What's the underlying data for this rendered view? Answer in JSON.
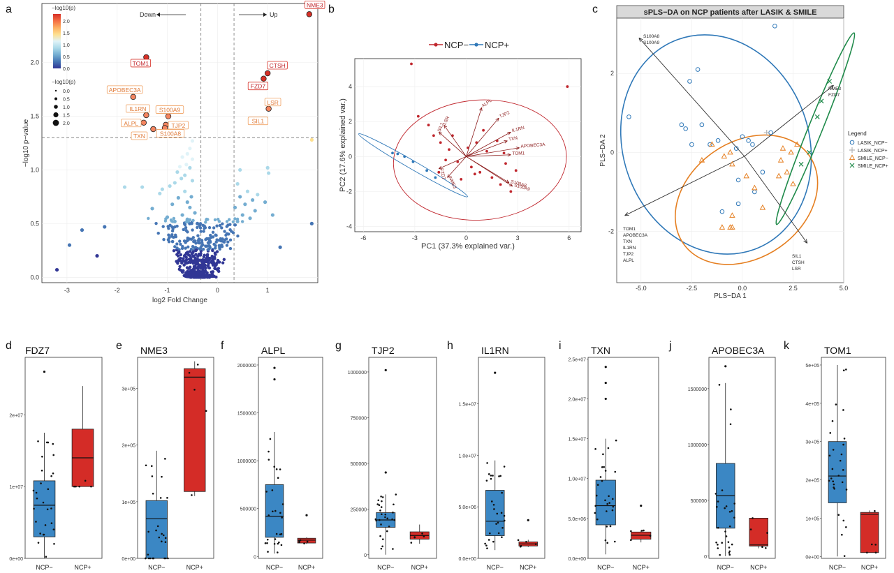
{
  "panel_letters": [
    "a",
    "b",
    "c",
    "d",
    "e",
    "f",
    "g",
    "h",
    "i",
    "j",
    "k"
  ],
  "chart_data": [
    {
      "id": "a",
      "type": "scatter",
      "title": "",
      "xlabel": "log2 Fold Change",
      "ylabel": "−log10 p−value",
      "xlim": [
        -3.5,
        2.0
      ],
      "ylim": [
        -0.05,
        2.55
      ],
      "xticks": [
        -3,
        -2,
        -1,
        0,
        1
      ],
      "yticks": [
        0.0,
        0.5,
        1.0,
        1.5,
        2.0
      ],
      "threshold_x": [
        -0.33,
        0.33
      ],
      "threshold_y": 1.3,
      "annotations": {
        "down": "Down",
        "up": "Up"
      },
      "colorbar": {
        "title": "−log10(p)",
        "ticks": [
          0.0,
          0.5,
          1.0,
          1.5,
          2.0
        ],
        "colors": [
          "#313695",
          "#4575b4",
          "#74add1",
          "#abd9e9",
          "#e0f3f8",
          "#fee090",
          "#fdae61",
          "#f46d43",
          "#d73027"
        ]
      },
      "size_legend": {
        "title": "−log10(p)",
        "values": [
          0.0,
          0.5,
          1.0,
          1.5,
          2.0
        ]
      },
      "labeled_genes": [
        {
          "gene": "NME3",
          "x": 1.83,
          "y": 2.45
        },
        {
          "gene": "TOM1",
          "x": -1.42,
          "y": 2.05
        },
        {
          "gene": "CTSH",
          "x": 1.0,
          "y": 1.9
        },
        {
          "gene": "FZD7",
          "x": 0.92,
          "y": 1.85
        },
        {
          "gene": "APOBEC3A",
          "x": -1.68,
          "y": 1.68
        },
        {
          "gene": "IL1RN",
          "x": -1.42,
          "y": 1.51
        },
        {
          "gene": "S100A9",
          "x": -0.98,
          "y": 1.5
        },
        {
          "gene": "LSR",
          "x": 1.02,
          "y": 1.57
        },
        {
          "gene": "SIL1",
          "x": 0.92,
          "y": 1.46
        },
        {
          "gene": "ALPL",
          "x": -1.47,
          "y": 1.44
        },
        {
          "gene": "TJP2",
          "x": -1.03,
          "y": 1.42
        },
        {
          "gene": "TXN",
          "x": -1.28,
          "y": 1.38
        },
        {
          "gene": "S100A8",
          "x": -1.05,
          "y": 1.39
        }
      ],
      "other_points": [
        [
          1.88,
          1.28
        ],
        [
          1.88,
          0.5
        ],
        [
          -0.5,
          1.27
        ],
        [
          -0.55,
          1.2
        ],
        [
          -0.6,
          1.15
        ],
        [
          -0.7,
          1.12
        ],
        [
          -0.5,
          1.1
        ],
        [
          -0.62,
          1.05
        ],
        [
          -0.75,
          1.03
        ],
        [
          -0.55,
          1.02
        ],
        [
          -0.8,
          0.98
        ],
        [
          -0.65,
          0.95
        ],
        [
          -0.72,
          0.92
        ],
        [
          -0.5,
          0.9
        ],
        [
          -0.85,
          0.88
        ],
        [
          -0.95,
          0.85
        ],
        [
          -1.1,
          0.82
        ],
        [
          -0.65,
          0.8
        ],
        [
          -1.15,
          0.78
        ],
        [
          -0.52,
          0.75
        ],
        [
          -0.78,
          0.74
        ],
        [
          -0.6,
          0.7
        ],
        [
          -0.9,
          0.68
        ],
        [
          -0.55,
          0.65
        ],
        [
          -1.3,
          0.64
        ],
        [
          -1.5,
          0.84
        ],
        [
          -1.85,
          0.84
        ],
        [
          -0.45,
          0.6
        ],
        [
          -0.7,
          0.58
        ],
        [
          -1.0,
          0.56
        ],
        [
          -0.6,
          0.54
        ],
        [
          -0.85,
          0.52
        ],
        [
          -0.4,
          0.5
        ],
        [
          -2.25,
          0.47
        ],
        [
          -2.7,
          0.44
        ],
        [
          -2.95,
          0.3
        ],
        [
          -2.4,
          0.2
        ],
        [
          -3.2,
          0.07
        ],
        [
          0.4,
          0.87
        ],
        [
          0.6,
          0.8
        ],
        [
          0.8,
          0.77
        ],
        [
          0.45,
          0.75
        ],
        [
          0.7,
          0.72
        ],
        [
          0.55,
          0.68
        ],
        [
          0.95,
          0.7
        ],
        [
          0.35,
          0.65
        ],
        [
          0.75,
          0.62
        ],
        [
          1.1,
          0.58
        ],
        [
          0.5,
          0.58
        ],
        [
          0.65,
          0.55
        ],
        [
          1.0,
          1.02
        ],
        [
          1.02,
          0.97
        ],
        [
          0.45,
          1.0
        ],
        [
          0.4,
          0.52
        ],
        [
          1.25,
          0.28
        ]
      ]
    },
    {
      "id": "b",
      "type": "scatter",
      "title": "",
      "xlabel": "PC1 (37.3% explained var.)",
      "ylabel": "PC2 (17.6% explained var.)",
      "xlim": [
        -6.5,
        6.7
      ],
      "ylim": [
        -4.3,
        5.6
      ],
      "xticks": [
        -6,
        -3,
        0,
        3,
        6
      ],
      "yticks": [
        -4,
        -2,
        0,
        2,
        4
      ],
      "legend": {
        "placement": "top",
        "entries": [
          "NCP−",
          "NCP+"
        ]
      },
      "series": [
        {
          "name": "NCP−",
          "color": "#c0262d",
          "x": [
            -3.2,
            5.9,
            -2.8,
            -1.9,
            -1.5,
            -1.0,
            -0.5,
            0.3,
            0.8,
            1.5,
            2.0,
            2.6,
            -2.2,
            -1.2,
            0.1,
            0.6,
            1.2,
            2.3,
            -0.8,
            0.5,
            1.8,
            2.9,
            2.2,
            -1.6,
            -0.3,
            1.0
          ],
          "y": [
            5.3,
            4.0,
            2.3,
            1.2,
            0.8,
            0.4,
            -0.3,
            -0.6,
            -0.9,
            -1.2,
            -1.6,
            -2.0,
            1.8,
            -0.2,
            0.5,
            0.8,
            0.3,
            -0.4,
            1.2,
            -1.0,
            0.9,
            -0.8,
            0.2,
            -0.9,
            -1.3,
            1.5
          ]
        },
        {
          "name": "NCP+",
          "color": "#2f78b8",
          "x": [
            -4.3,
            -4.0,
            -3.6,
            -3.1,
            -2.3,
            -1.8
          ],
          "y": [
            0.2,
            0.15,
            0.0,
            -0.3,
            -0.8,
            -1.2
          ]
        }
      ],
      "loadings": [
        "ALPL",
        "TJP2",
        "IL1RN",
        "TXN",
        "APOBEC3A",
        "TOM1",
        "LSR",
        "SIL1",
        "S100A8",
        "S100A9",
        "FZD7",
        "NME3"
      ]
    },
    {
      "id": "c",
      "type": "scatter",
      "title": "sPLS−DA on NCP patients after LASIK & SMILE",
      "xlabel": "PLS−DA 1",
      "ylabel": "PLS−DA 2",
      "xlim": [
        -6.2,
        5.0
      ],
      "ylim": [
        -3.3,
        3.4
      ],
      "xticks": [
        -5.0,
        -2.5,
        0.0,
        2.5,
        5.0
      ],
      "yticks": [
        -2,
        0,
        2
      ],
      "legend": {
        "title": "Legend",
        "placement": "right",
        "entries": [
          "LASIK_NCP−",
          "LASIK_NCP+",
          "SMILE_NCP−",
          "SMILE_NCP+"
        ]
      },
      "series": [
        {
          "name": "LASIK_NCP−",
          "color": "#2f78b8",
          "marker": "circle",
          "x": [
            1.6,
            -2.2,
            -2.6,
            -3.0,
            -2.8,
            -2.5,
            -2.0,
            -1.6,
            -1.2,
            -0.3,
            -0.2,
            0.3,
            0.5,
            0.6,
            1.0,
            1.4,
            -5.6,
            -1.0,
            -0.2,
            0.0
          ],
          "y": [
            3.2,
            2.1,
            1.8,
            0.7,
            0.6,
            0.2,
            0.7,
            0.2,
            0.3,
            0.1,
            -1.3,
            0.3,
            0.2,
            -1.0,
            -0.5,
            0.5,
            0.9,
            -1.5,
            -0.7,
            0.4
          ]
        },
        {
          "name": "LASIK_NCP+",
          "color": "#b3b3b3",
          "marker": "plus",
          "x": [
            1.2
          ],
          "y": [
            0.5
          ]
        },
        {
          "name": "SMILE_NCP−",
          "color": "#e57f21",
          "marker": "triangle",
          "x": [
            -2.0,
            -1.5,
            -0.9,
            -0.6,
            -0.5,
            0.2,
            0.6,
            1.0,
            1.8,
            2.2,
            1.9,
            2.0,
            2.5,
            -1.0,
            -0.5,
            -0.5,
            -0.6,
            2.4,
            2.7
          ],
          "y": [
            -0.2,
            0.2,
            -0.1,
            0.0,
            -0.3,
            -0.6,
            -0.9,
            -1.4,
            -0.6,
            -0.5,
            -0.2,
            0.1,
            -0.8,
            -1.9,
            -1.6,
            -1.9,
            -1.9,
            0.0,
            0.2
          ]
        },
        {
          "name": "SMILE_NCP+",
          "color": "#1f8a4a",
          "marker": "cross",
          "x": [
            4.3,
            3.9,
            3.7,
            3.3,
            2.9
          ],
          "y": [
            1.8,
            1.3,
            0.9,
            0.0,
            -0.3
          ]
        }
      ],
      "loading_labels": {
        "top_left": [
          "S100A8",
          "S100A9"
        ],
        "right": [
          "NME3",
          "FZD7"
        ],
        "bottom_left": [
          "TOM1",
          "APOBEC3A",
          "TXN",
          "IL1RN",
          "TJP2",
          "ALPL"
        ],
        "bottom_right": [
          "SIL1",
          "CTSH",
          "LSR"
        ]
      }
    },
    {
      "id": "d",
      "type": "box",
      "title": "FDZ7",
      "categories": [
        "NCP−",
        "NCP+"
      ],
      "ylim": [
        0,
        28000000
      ],
      "yticks": [
        0,
        10000000,
        20000000
      ],
      "ytick_labels": [
        "0e+00",
        "1e+07",
        "2e+07"
      ],
      "boxes": [
        {
          "category": "NCP−",
          "min": 0,
          "q1": 3000000,
          "median": 7400000,
          "q3": 10800000,
          "max": 17500000,
          "outliers": [
            26000000
          ],
          "color": "#3b87c4"
        },
        {
          "category": "NCP+",
          "min": 10000000,
          "q1": 10000000,
          "median": 14000000,
          "q3": 18000000,
          "max": 24000000,
          "outliers": [],
          "color": "#d42c27"
        }
      ]
    },
    {
      "id": "e",
      "type": "box",
      "title": "NME3",
      "categories": [
        "NCP−",
        "NCP+"
      ],
      "ylim": [
        0,
        355000
      ],
      "yticks": [
        0,
        100000,
        200000,
        300000
      ],
      "ytick_labels": [
        "0e+00",
        "1e+05",
        "2e+05",
        "3e+05"
      ],
      "boxes": [
        {
          "category": "NCP−",
          "min": 0,
          "q1": 0,
          "median": 70000,
          "q3": 102000,
          "max": 190000,
          "outliers": [],
          "color": "#3b87c4"
        },
        {
          "category": "NCP+",
          "min": 110000,
          "q1": 118000,
          "median": 320000,
          "q3": 335000,
          "max": 348000,
          "outliers": [],
          "color": "#d42c27"
        }
      ]
    },
    {
      "id": "f",
      "type": "box",
      "title": "ALPL",
      "categories": [
        "NCP−",
        "NCP+"
      ],
      "ylim": [
        -20000,
        2080000
      ],
      "yticks": [
        0,
        500000,
        1000000,
        1500000,
        2000000
      ],
      "ytick_labels": [
        "0",
        "500000",
        "1000000",
        "1500000",
        "2000000"
      ],
      "boxes": [
        {
          "category": "NCP−",
          "min": 30000,
          "q1": 200000,
          "median": 420000,
          "q3": 750000,
          "max": 1300000,
          "outliers": [
            1850000,
            1970000
          ],
          "color": "#3b87c4"
        },
        {
          "category": "NCP+",
          "min": 130000,
          "q1": 140000,
          "median": 170000,
          "q3": 190000,
          "max": 200000,
          "outliers": [
            430000
          ],
          "color": "#d42c27"
        }
      ]
    },
    {
      "id": "g",
      "type": "box",
      "title": "TJP2",
      "categories": [
        "NCP−",
        "NCP+"
      ],
      "ylim": [
        -20000,
        1080000
      ],
      "yticks": [
        0,
        250000,
        500000,
        750000,
        1000000
      ],
      "ytick_labels": [
        "0",
        "250000",
        "500000",
        "750000",
        "1000000"
      ],
      "boxes": [
        {
          "category": "NCP−",
          "min": 0,
          "q1": 150000,
          "median": 190000,
          "q3": 230000,
          "max": 330000,
          "outliers": [
            450000,
            1010000
          ],
          "color": "#3b87c4"
        },
        {
          "category": "NCP+",
          "min": 60000,
          "q1": 85000,
          "median": 105000,
          "q3": 125000,
          "max": 165000,
          "outliers": [],
          "color": "#d42c27"
        }
      ]
    },
    {
      "id": "h",
      "type": "box",
      "title": "IL1RN",
      "categories": [
        "NCP−",
        "NCP+"
      ],
      "ylim": [
        0,
        19500000
      ],
      "yticks": [
        0,
        5000000,
        10000000,
        15000000
      ],
      "ytick_labels": [
        "0.0e+00",
        "5.0e+06",
        "1.0e+07",
        "1.5e+07"
      ],
      "boxes": [
        {
          "category": "NCP−",
          "min": 800000,
          "q1": 2200000,
          "median": 3600000,
          "q3": 6600000,
          "max": 9500000,
          "outliers": [
            18000000
          ],
          "color": "#3b87c4"
        },
        {
          "category": "NCP+",
          "min": 1100000,
          "q1": 1200000,
          "median": 1400000,
          "q3": 1600000,
          "max": 1800000,
          "outliers": [
            3700000
          ],
          "color": "#d42c27"
        }
      ]
    },
    {
      "id": "i",
      "type": "box",
      "title": "TXN",
      "categories": [
        "NCP−",
        "NCP+"
      ],
      "ylim": [
        0,
        25200000
      ],
      "yticks": [
        0,
        5000000,
        10000000,
        15000000,
        20000000,
        25000000
      ],
      "ytick_labels": [
        "0.0e+00",
        "5.0e+06",
        "1.0e+07",
        "1.5e+07",
        "2.0e+07",
        "2.5e+07"
      ],
      "boxes": [
        {
          "category": "NCP−",
          "min": 500000,
          "q1": 4200000,
          "median": 6600000,
          "q3": 9800000,
          "max": 15000000,
          "outliers": [
            20000000,
            22000000,
            24000000
          ],
          "color": "#3b87c4"
        },
        {
          "category": "NCP+",
          "min": 2000000,
          "q1": 2400000,
          "median": 2900000,
          "q3": 3300000,
          "max": 3500000,
          "outliers": [
            6600000
          ],
          "color": "#d42c27"
        }
      ]
    },
    {
      "id": "j",
      "type": "box",
      "title": "APOBEC3A",
      "categories": [
        "NCP−",
        "NCP+"
      ],
      "ylim": [
        -20000,
        1780000
      ],
      "yticks": [
        0,
        500000,
        1000000,
        1500000
      ],
      "ytick_labels": [
        "0",
        "500000",
        "1000000",
        "1500000"
      ],
      "boxes": [
        {
          "category": "NCP−",
          "min": 0,
          "q1": 250000,
          "median": 540000,
          "q3": 830000,
          "max": 1550000,
          "outliers": [
            1700000
          ],
          "color": "#3b87c4"
        },
        {
          "category": "NCP+",
          "min": 70000,
          "q1": 90000,
          "median": 100000,
          "q3": 340000,
          "max": 340000,
          "outliers": [],
          "color": "#d42c27"
        }
      ]
    },
    {
      "id": "k",
      "type": "box",
      "title": "TOM1",
      "categories": [
        "NCP−",
        "NCP+"
      ],
      "ylim": [
        -5000,
        520000
      ],
      "yticks": [
        0,
        100000,
        200000,
        300000,
        400000,
        500000
      ],
      "ytick_labels": [
        "0e+00",
        "1e+05",
        "2e+05",
        "3e+05",
        "4e+05",
        "5e+05"
      ],
      "boxes": [
        {
          "category": "NCP−",
          "min": 0,
          "q1": 140000,
          "median": 210000,
          "q3": 300000,
          "max": 500000,
          "outliers": [],
          "color": "#3b87c4"
        },
        {
          "category": "NCP+",
          "min": 10000,
          "q1": 10000,
          "median": 110000,
          "q3": 115000,
          "max": 120000,
          "outliers": [],
          "color": "#d42c27"
        }
      ]
    }
  ]
}
